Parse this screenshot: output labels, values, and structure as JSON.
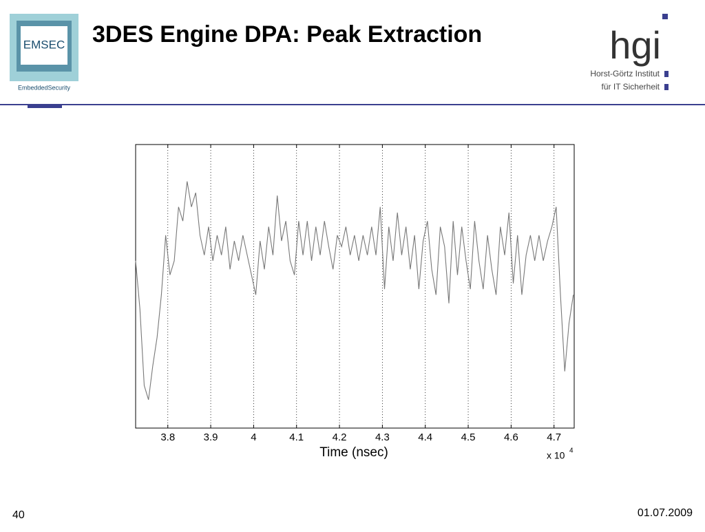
{
  "slide": {
    "logo_left": "EMSEC",
    "logo_left_caption": "EmbeddedSecurity",
    "logo_right": "hgi",
    "logo_right_line1": "Horst-Görtz Institut",
    "logo_right_line2": "für IT Sicherheit",
    "page_number": "40",
    "date": "01.07.2009"
  },
  "chart_data": {
    "type": "line",
    "title": "3DES Engine DPA: Peak Extraction",
    "x_label": "Time (nsec)",
    "x_multiplier": "x 10",
    "x_multiplier_exponent": "4",
    "xlim": [
      3.725,
      4.747
    ],
    "ylim": [
      0,
      100
    ],
    "xticks": [
      3.8,
      3.9,
      4,
      4.1,
      4.2,
      4.3,
      4.4,
      4.5,
      4.6,
      4.7
    ],
    "grid": true,
    "color": "#777777",
    "x": [
      3.725,
      3.735,
      3.745,
      3.755,
      3.765,
      3.775,
      3.785,
      3.795,
      3.805,
      3.815,
      3.825,
      3.835,
      3.845,
      3.855,
      3.865,
      3.875,
      3.885,
      3.895,
      3.905,
      3.915,
      3.925,
      3.935,
      3.945,
      3.955,
      3.965,
      3.975,
      3.985,
      3.995,
      4.005,
      4.015,
      4.025,
      4.035,
      4.045,
      4.055,
      4.065,
      4.075,
      4.085,
      4.095,
      4.105,
      4.115,
      4.125,
      4.135,
      4.145,
      4.155,
      4.165,
      4.175,
      4.185,
      4.195,
      4.205,
      4.215,
      4.225,
      4.235,
      4.245,
      4.255,
      4.265,
      4.275,
      4.285,
      4.295,
      4.305,
      4.315,
      4.325,
      4.335,
      4.345,
      4.355,
      4.365,
      4.375,
      4.385,
      4.395,
      4.405,
      4.415,
      4.425,
      4.435,
      4.445,
      4.455,
      4.465,
      4.475,
      4.485,
      4.495,
      4.505,
      4.515,
      4.525,
      4.535,
      4.545,
      4.555,
      4.565,
      4.575,
      4.585,
      4.595,
      4.605,
      4.615,
      4.625,
      4.635,
      4.645,
      4.655,
      4.665,
      4.675,
      4.685,
      4.695,
      4.705,
      4.715,
      4.725,
      4.735,
      4.745
    ],
    "values": [
      59,
      42,
      15,
      10,
      22,
      32,
      47,
      68,
      54,
      59,
      78,
      73,
      87,
      78,
      83,
      68,
      61,
      71,
      59,
      68,
      61,
      71,
      56,
      66,
      59,
      68,
      61,
      54,
      47,
      66,
      56,
      71,
      61,
      82,
      66,
      73,
      59,
      54,
      73,
      61,
      73,
      59,
      71,
      61,
      73,
      64,
      56,
      68,
      64,
      71,
      61,
      68,
      59,
      68,
      61,
      71,
      61,
      78,
      49,
      71,
      59,
      76,
      61,
      71,
      56,
      68,
      49,
      66,
      73,
      56,
      47,
      71,
      64,
      44,
      73,
      54,
      71,
      59,
      49,
      73,
      59,
      49,
      68,
      56,
      47,
      71,
      61,
      76,
      51,
      68,
      47,
      61,
      68,
      59,
      68,
      59,
      66,
      71,
      78,
      47,
      20,
      37,
      47
    ]
  }
}
